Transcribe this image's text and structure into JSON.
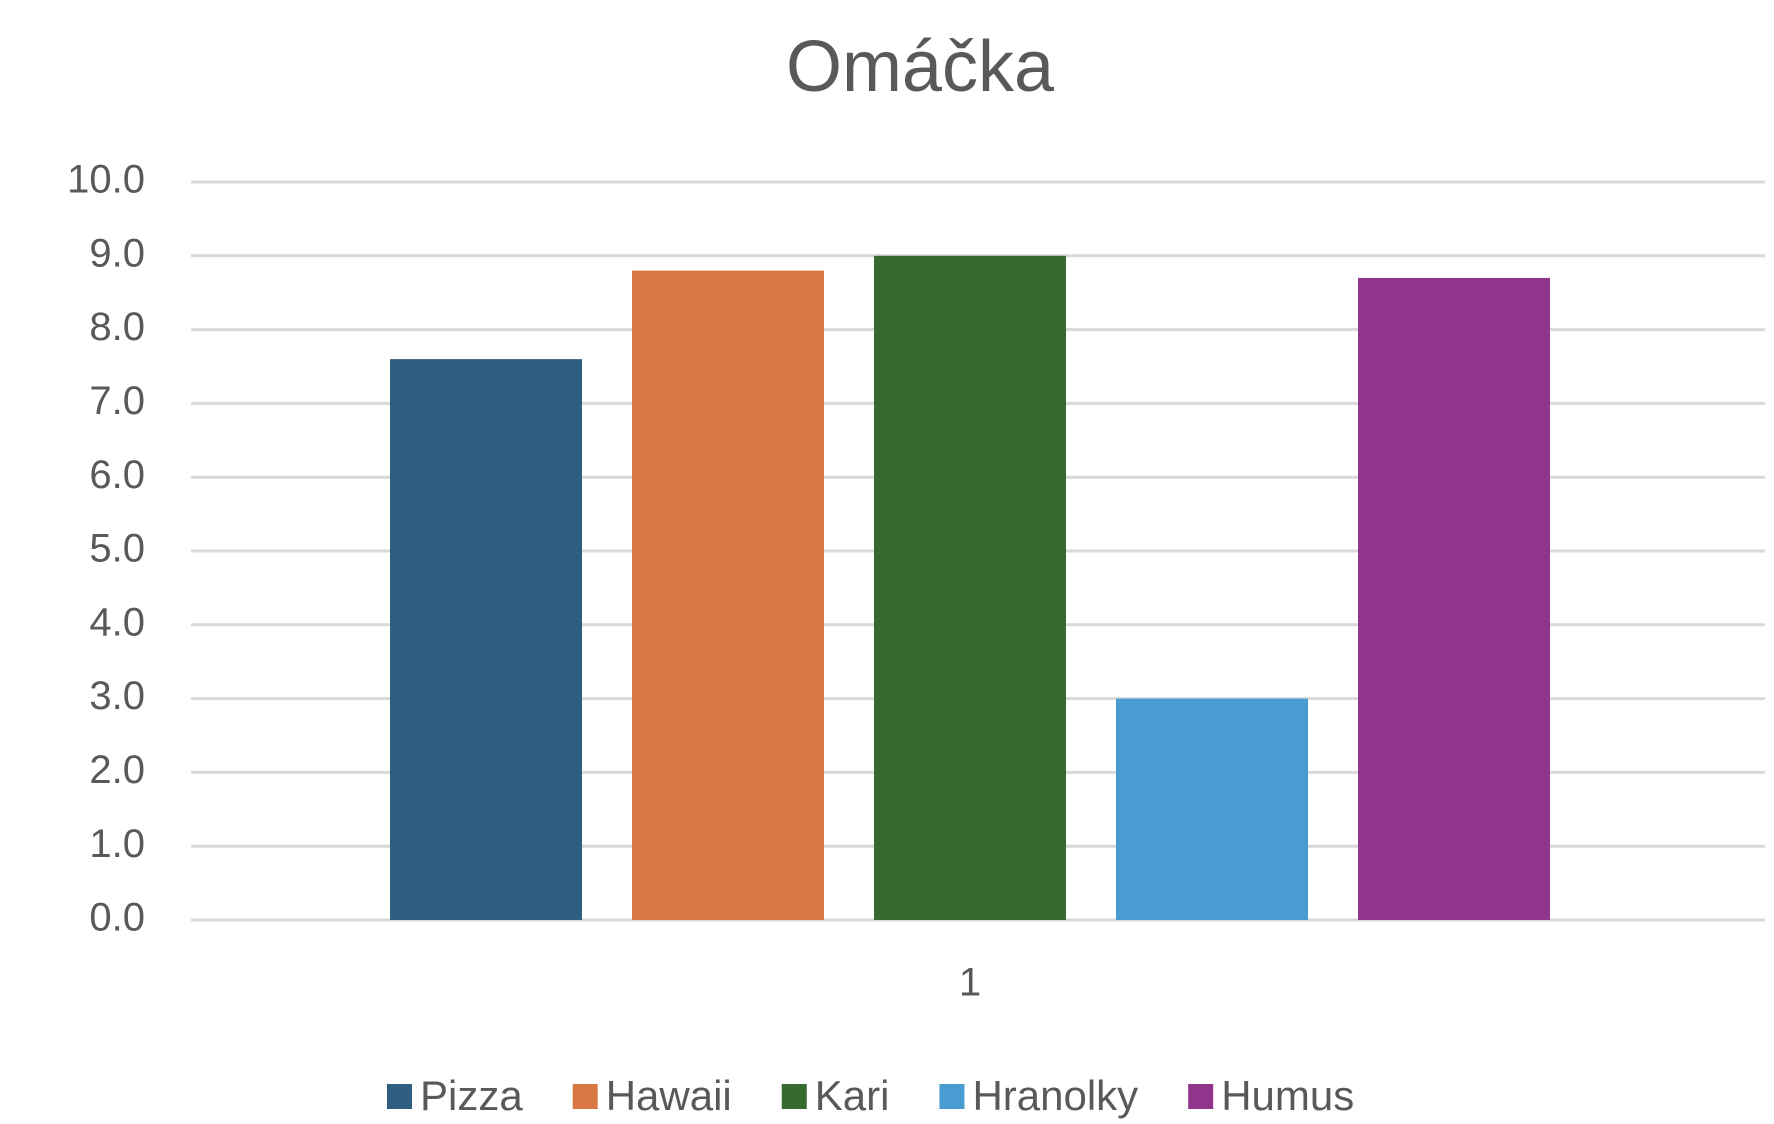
{
  "chart_data": {
    "type": "bar",
    "title": "Omáčka",
    "categories": [
      "1"
    ],
    "series": [
      {
        "name": "Pizza",
        "color": "#2e5f80",
        "values": [
          7.6
        ]
      },
      {
        "name": "Hawaii",
        "color": "#d87742",
        "values": [
          8.8
        ]
      },
      {
        "name": "Kari",
        "color": "#356b2f",
        "values": [
          9.0
        ]
      },
      {
        "name": "Hranolky",
        "color": "#4a9bd2",
        "values": [
          3.0
        ]
      },
      {
        "name": "Humus",
        "color": "#91358c",
        "values": [
          8.7
        ]
      }
    ],
    "ylim": [
      0,
      10
    ],
    "yticks": [
      {
        "value": 0,
        "label": "0.0"
      },
      {
        "value": 1,
        "label": "1.0"
      },
      {
        "value": 2,
        "label": "2.0"
      },
      {
        "value": 3,
        "label": "3.0"
      },
      {
        "value": 4,
        "label": "4.0"
      },
      {
        "value": 5,
        "label": "5.0"
      },
      {
        "value": 6,
        "label": "6.0"
      },
      {
        "value": 7,
        "label": "7.0"
      },
      {
        "value": 8,
        "label": "8.0"
      },
      {
        "value": 9,
        "label": "9.0"
      },
      {
        "value": 10,
        "label": "10.0"
      }
    ],
    "grid": true,
    "legend": "bottom"
  }
}
